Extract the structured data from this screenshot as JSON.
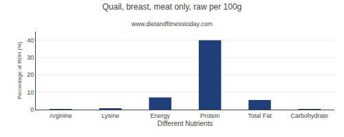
{
  "chart_data": {
    "type": "bar",
    "title": "Quail, breast, meat only, raw per 100g",
    "subtitle": "www.dietandfitnesstoday.com",
    "xlabel": "Different Nutrients",
    "ylabel": "Percentage of RDH (%)",
    "categories": [
      "Arginine",
      "Lysine",
      "Energy",
      "Protein",
      "Total Fat",
      "Carbohydrate"
    ],
    "values": [
      0.3,
      0.5,
      7.0,
      40.0,
      5.5,
      0.3
    ],
    "color": "#1F3F7A",
    "ylim": [
      0,
      45
    ],
    "yticks": [
      0,
      10,
      20,
      30,
      40
    ],
    "grid": true
  }
}
